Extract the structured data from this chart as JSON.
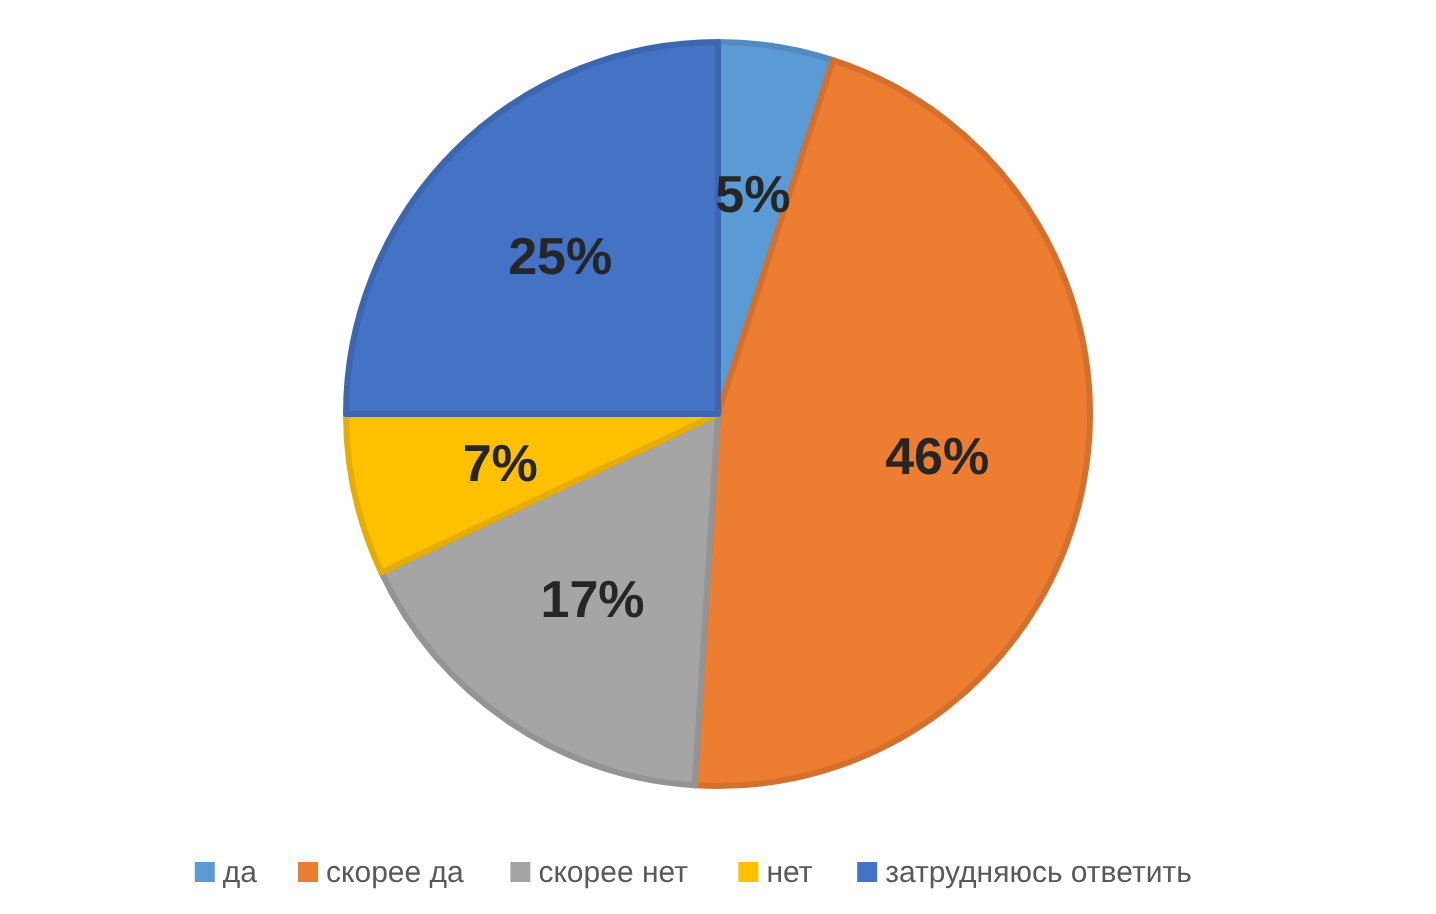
{
  "chart_data": {
    "type": "pie",
    "categories": [
      "да",
      "скорее да",
      "скорее нет",
      "нет",
      "затрудняюсь ответить"
    ],
    "values": [
      5,
      46,
      17,
      7,
      25
    ],
    "colors": [
      "#5b9bd5",
      "#ed7d31",
      "#a5a5a5",
      "#ffc000",
      "#4472c4"
    ],
    "value_labels": [
      "5%",
      "46%",
      "17%",
      "7%",
      "25%"
    ],
    "legend": "bottom"
  }
}
